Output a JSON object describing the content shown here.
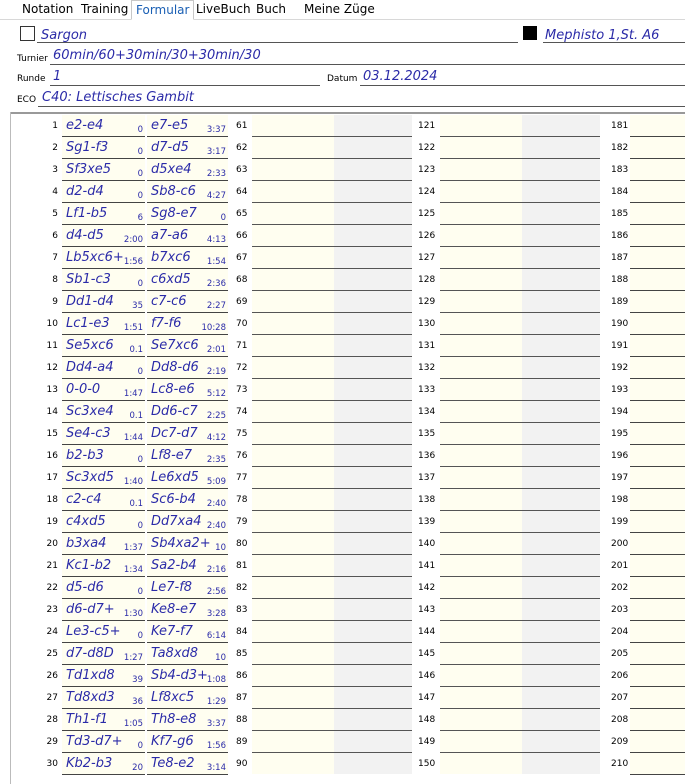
{
  "tabs": [
    "Notation",
    "Training",
    "Formular",
    "LiveBuch",
    "Buch",
    "Meine Züge"
  ],
  "active_tab_index": 2,
  "header": {
    "white": "Sargon",
    "black": "Mephisto 1,St. A6",
    "turnier_label": "Turnier",
    "turnier": "60min/60+30min/30+30min/30",
    "runde_label": "Runde",
    "runde": "1",
    "datum_label": "Datum",
    "datum": "03.12.2024",
    "eco_label": "ECO",
    "eco": "C40: Lettisches Gambit"
  },
  "moves": [
    [
      1,
      "e2-e4",
      "0",
      "e7-e5",
      "3:37"
    ],
    [
      2,
      "Sg1-f3",
      "0",
      "d7-d5",
      "3:17"
    ],
    [
      3,
      "Sf3xe5",
      "0",
      "d5xe4",
      "2:33"
    ],
    [
      4,
      "d2-d4",
      "0",
      "Sb8-c6",
      "4:27"
    ],
    [
      5,
      "Lf1-b5",
      "6",
      "Sg8-e7",
      "0"
    ],
    [
      6,
      "d4-d5",
      "2:00",
      "a7-a6",
      "4:13"
    ],
    [
      7,
      "Lb5xc6+",
      "1:56",
      "b7xc6",
      "1:54"
    ],
    [
      8,
      "Sb1-c3",
      "0",
      "c6xd5",
      "2:36"
    ],
    [
      9,
      "Dd1-d4",
      "35",
      "c7-c6",
      "2:27"
    ],
    [
      10,
      "Lc1-e3",
      "1:51",
      "f7-f6",
      "10:28"
    ],
    [
      11,
      "Se5xc6",
      "0.1",
      "Se7xc6",
      "2:01"
    ],
    [
      12,
      "Dd4-a4",
      "0",
      "Dd8-d6",
      "2:19"
    ],
    [
      13,
      "0-0-0",
      "1:47",
      "Lc8-e6",
      "5:12"
    ],
    [
      14,
      "Sc3xe4",
      "0.1",
      "Dd6-c7",
      "2:25"
    ],
    [
      15,
      "Se4-c3",
      "1:44",
      "Dc7-d7",
      "4:12"
    ],
    [
      16,
      "b2-b3",
      "0",
      "Lf8-e7",
      "2:35"
    ],
    [
      17,
      "Sc3xd5",
      "1:40",
      "Le6xd5",
      "5:09"
    ],
    [
      18,
      "c2-c4",
      "0.1",
      "Sc6-b4",
      "2:40"
    ],
    [
      19,
      "c4xd5",
      "0",
      "Dd7xa4",
      "2:40"
    ],
    [
      20,
      "b3xa4",
      "1:37",
      "Sb4xa2+",
      "10"
    ],
    [
      21,
      "Kc1-b2",
      "1:34",
      "Sa2-b4",
      "2:16"
    ],
    [
      22,
      "d5-d6",
      "0",
      "Le7-f8",
      "2:56"
    ],
    [
      23,
      "d6-d7+",
      "1:30",
      "Ke8-e7",
      "3:28"
    ],
    [
      24,
      "Le3-c5+",
      "0",
      "Ke7-f7",
      "6:14"
    ],
    [
      25,
      "d7-d8D",
      "1:27",
      "Ta8xd8",
      "10"
    ],
    [
      26,
      "Td1xd8",
      "39",
      "Sb4-d3+",
      "1:08"
    ],
    [
      27,
      "Td8xd3",
      "36",
      "Lf8xc5",
      "1:29"
    ],
    [
      28,
      "Th1-f1",
      "1:05",
      "Th8-e8",
      "3:37"
    ],
    [
      29,
      "Td3-d7+",
      "0",
      "Kf7-g6",
      "1:56"
    ],
    [
      30,
      "Kb2-b3",
      "20",
      "Te8-e2",
      "3:14"
    ]
  ],
  "empty_columns": [
    [
      61,
      62,
      63,
      64,
      65,
      66,
      67,
      68,
      69,
      70,
      71,
      72,
      73,
      74,
      75,
      76,
      77,
      78,
      79,
      80,
      81,
      82,
      83,
      84,
      85,
      86,
      87,
      88,
      89,
      90
    ],
    [
      121,
      122,
      123,
      124,
      125,
      126,
      127,
      128,
      129,
      130,
      131,
      132,
      133,
      134,
      135,
      136,
      137,
      138,
      139,
      140,
      141,
      142,
      143,
      144,
      145,
      146,
      147,
      148,
      149,
      150
    ],
    [
      181,
      182,
      183,
      184,
      185,
      186,
      187,
      188,
      189,
      190,
      191,
      192,
      193,
      194,
      195,
      196,
      197,
      198,
      199,
      200,
      201,
      202,
      203,
      204,
      205,
      206,
      207,
      208,
      209,
      210
    ]
  ]
}
